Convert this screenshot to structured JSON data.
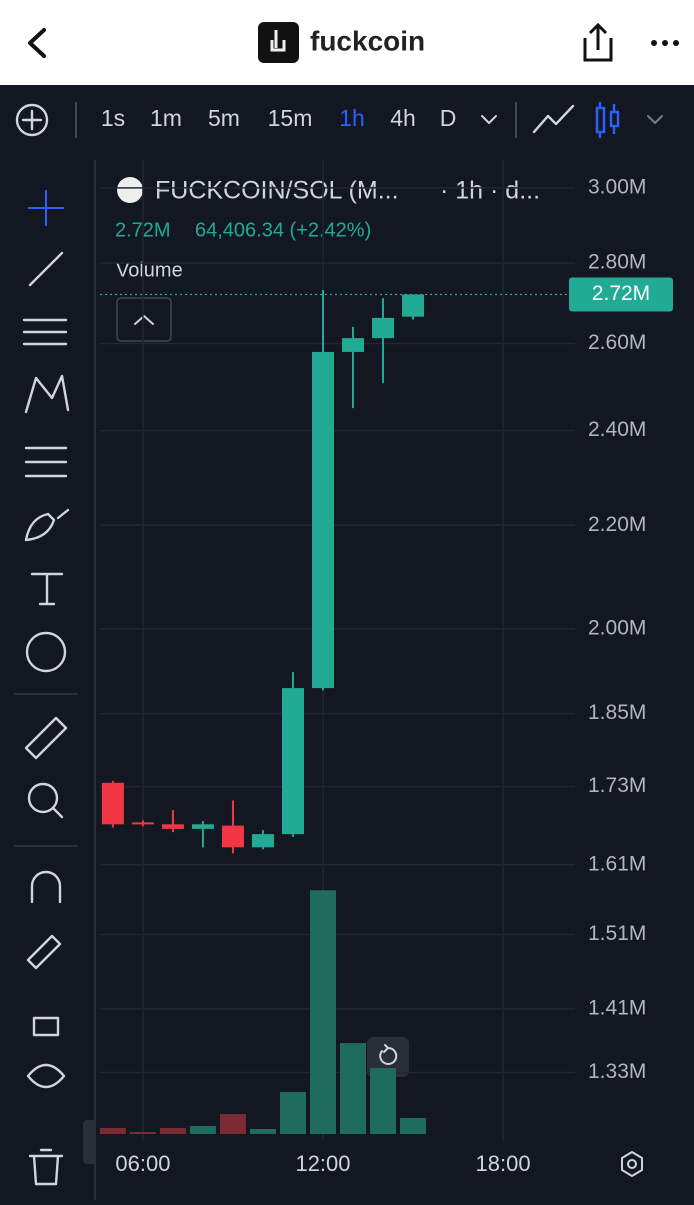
{
  "header": {
    "title": "fuckcoin"
  },
  "toolbar": {
    "intervals": [
      "1s",
      "1m",
      "5m",
      "15m",
      "1h",
      "4h",
      "D"
    ],
    "active_index": 4,
    "active_color": "#2962ff"
  },
  "chart_data": {
    "type": "candlestick",
    "title": "FUCKCOIN/SOL (M...",
    "subtitle": "· 1h · d...",
    "legend": {
      "price": "2.72M",
      "change": "64,406.34 (+2.42%)"
    },
    "volume_label": "Volume",
    "x": [
      5,
      6,
      7,
      8,
      9,
      10,
      11,
      12,
      13,
      14,
      15
    ],
    "open": [
      1736000,
      1674000,
      1671000,
      1664000,
      1669000,
      1636000,
      1656000,
      1894000,
      2580000,
      2613000,
      2665000
    ],
    "high": [
      1739000,
      1677000,
      1693000,
      1676000,
      1708000,
      1662000,
      1922000,
      2731000,
      2640000,
      2711000,
      2720000
    ],
    "low": [
      1666000,
      1668000,
      1659000,
      1636000,
      1627000,
      1633000,
      1652000,
      1890000,
      2450000,
      2507000,
      2658000
    ],
    "close": [
      1671000,
      1671000,
      1664000,
      1671000,
      1636000,
      1656000,
      1894000,
      2580000,
      2613000,
      2662000,
      2720000
    ],
    "up_color": "#22ab94",
    "down_color": "#f23645",
    "volume": {
      "values": [
        6,
        2,
        6,
        8,
        20,
        5,
        42,
        244,
        91,
        66,
        16
      ],
      "ylim": [
        0,
        975
      ],
      "up_color": "#1f6b5e",
      "down_color": "#7c2b35"
    },
    "xlim": [
      4.57,
      20.23
    ],
    "xticks": [
      {
        "value": 6,
        "label": "06:00"
      },
      {
        "value": 12,
        "label": "12:00"
      },
      {
        "value": 18,
        "label": "18:00"
      }
    ],
    "ylim": [
      1250000,
      3078000
    ],
    "log_scale": true,
    "grid": true,
    "yticks": [
      {
        "value": 3000000,
        "label": "3.00M"
      },
      {
        "value": 2800000,
        "label": "2.80M"
      },
      {
        "value": 2600000,
        "label": "2.60M"
      },
      {
        "value": 2400000,
        "label": "2.40M"
      },
      {
        "value": 2200000,
        "label": "2.20M"
      },
      {
        "value": 2000000,
        "label": "2.00M"
      },
      {
        "value": 1850000,
        "label": "1.85M"
      },
      {
        "value": 1730000,
        "label": "1.73M"
      },
      {
        "value": 1610000,
        "label": "1.61M"
      },
      {
        "value": 1510000,
        "label": "1.51M"
      },
      {
        "value": 1410000,
        "label": "1.41M"
      },
      {
        "value": 1330000,
        "label": "1.33M"
      }
    ],
    "price_line": {
      "value": 2720000,
      "label": "2.72M"
    }
  }
}
